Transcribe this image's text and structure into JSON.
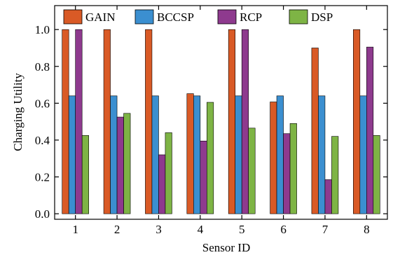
{
  "chart_data": {
    "type": "bar",
    "title": "",
    "xlabel": "Sensor ID",
    "ylabel": "Charging Utility",
    "categories": [
      "1",
      "2",
      "3",
      "4",
      "5",
      "6",
      "7",
      "8"
    ],
    "ylim": [
      -0.03,
      1.13
    ],
    "yticks": [
      "0.0",
      "0.2",
      "0.4",
      "0.6",
      "0.8",
      "1.0"
    ],
    "grid": false,
    "legend_position": "top",
    "series": [
      {
        "name": "GAIN",
        "color": "#d95a26",
        "values": [
          1.0,
          1.0,
          1.0,
          0.652,
          1.0,
          0.607,
          0.9,
          1.0
        ]
      },
      {
        "name": "BCCSP",
        "color": "#3b8fd0",
        "values": [
          0.64,
          0.64,
          0.64,
          0.64,
          0.64,
          0.64,
          0.64,
          0.64
        ]
      },
      {
        "name": "RCP",
        "color": "#8e3a8e",
        "values": [
          1.0,
          0.525,
          0.32,
          0.395,
          1.0,
          0.435,
          0.185,
          0.905
        ]
      },
      {
        "name": "DSP",
        "color": "#7eb445",
        "values": [
          0.425,
          0.545,
          0.44,
          0.605,
          0.465,
          0.49,
          0.42,
          0.425
        ]
      }
    ]
  }
}
